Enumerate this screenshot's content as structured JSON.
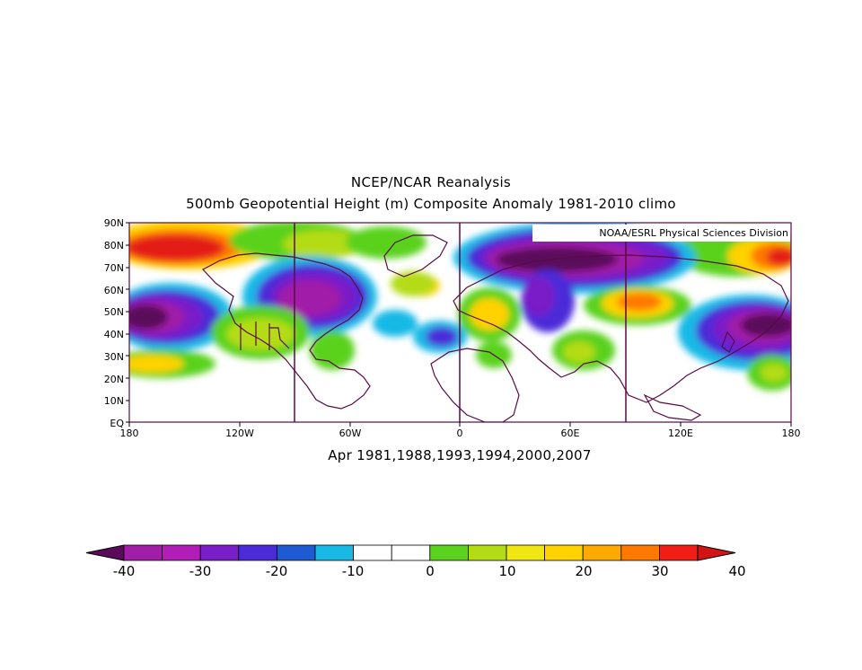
{
  "title_line1": "NCEP/NCAR Reanalysis",
  "title_line2": "500mb Geopotential Height (m) Composite Anomaly 1981-2010 climo",
  "subtitle": "Apr 1981,1988,1993,1994,2000,2007",
  "credit": "NOAA/ESRL Physical Sciences Division",
  "lat_labels": [
    "90N",
    "80N",
    "70N",
    "60N",
    "50N",
    "40N",
    "30N",
    "20N",
    "10N",
    "EQ"
  ],
  "lon_labels": [
    "180",
    "120W",
    "60W",
    "0",
    "60E",
    "120E",
    "180"
  ],
  "colorbar": {
    "tick_labels": [
      "-40",
      "-30",
      "-20",
      "-10",
      "0",
      "10",
      "20",
      "30",
      "40"
    ],
    "colors": [
      "#5a0a5a",
      "#a11ea8",
      "#b11eb7",
      "#7a1ec8",
      "#4b2ad8",
      "#1e5ad2",
      "#19b9e6",
      "#ffffff",
      "#ffffff",
      "#5ad21e",
      "#b4dc14",
      "#f0e614",
      "#ffd200",
      "#ffaa00",
      "#ff7800",
      "#f01e14",
      "#d21414"
    ]
  }
}
